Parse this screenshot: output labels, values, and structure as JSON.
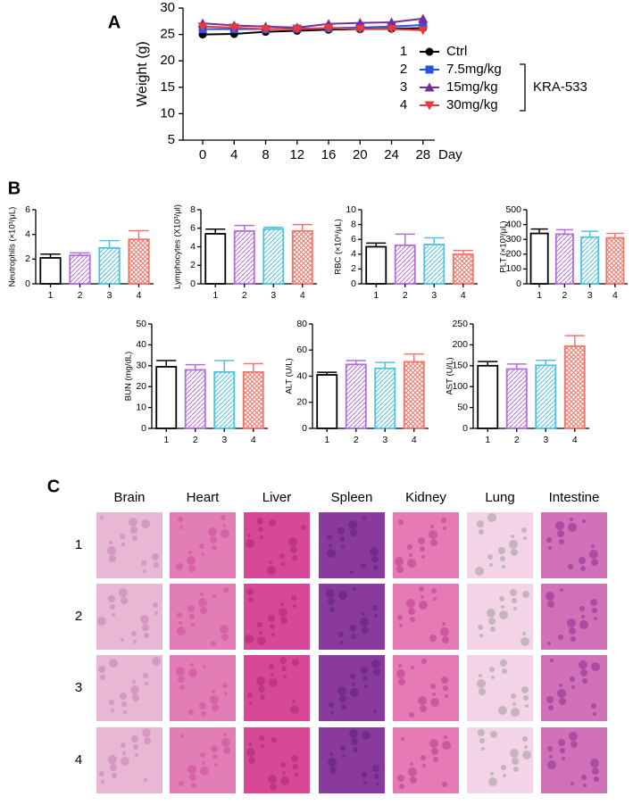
{
  "chart_data": [
    {
      "type": "line",
      "panel": "A",
      "xlabel": "Day",
      "ylabel": "Weight (g)",
      "x": [
        0,
        4,
        8,
        12,
        16,
        20,
        24,
        28
      ],
      "xlim": [
        -2.5,
        29.5
      ],
      "xticks": [
        0,
        4,
        8,
        12,
        16,
        20,
        24,
        28
      ],
      "ylim": [
        5,
        30
      ],
      "yticks": [
        5,
        10,
        15,
        20,
        25,
        30
      ],
      "legend_labels": [
        "1",
        "2",
        "3",
        "4"
      ],
      "group_label": "KRA-533",
      "series": [
        {
          "name": "Ctrl",
          "color": "#000000",
          "marker": "circle",
          "values": [
            25,
            25.1,
            25.5,
            25.7,
            25.9,
            26,
            26.1,
            26.2
          ]
        },
        {
          "name": "7.5mg/kg",
          "color": "#2453e8",
          "marker": "square",
          "values": [
            26,
            26,
            26,
            26.1,
            26.2,
            26.3,
            26.5,
            26.8
          ]
        },
        {
          "name": "15mg/kg",
          "color": "#7b2d9c",
          "marker": "triangle-up",
          "values": [
            27.1,
            26.7,
            26.5,
            26.3,
            27,
            27.2,
            27.3,
            28
          ]
        },
        {
          "name": "30mg/kg",
          "color": "#e83a3a",
          "marker": "triangle-down",
          "values": [
            26.5,
            26.3,
            26,
            26,
            26.2,
            26,
            26,
            25.8
          ]
        }
      ]
    },
    {
      "type": "bar",
      "panel": "B",
      "ylabel": "Neutrophils (×10³/μL)",
      "categories": [
        "1",
        "2",
        "3",
        "4"
      ],
      "values": [
        2.1,
        2.3,
        2.9,
        3.6
      ],
      "errors": [
        0.3,
        0.2,
        0.6,
        0.7
      ],
      "ylim": [
        0,
        6
      ],
      "yticks": [
        0,
        2,
        4,
        6
      ],
      "colors": [
        "#000000",
        "#b46be0",
        "#4dc3e0",
        "#f0776b"
      ],
      "hatch": [
        "none",
        "diagonal",
        "diagonal",
        "cross"
      ]
    },
    {
      "type": "bar",
      "ylabel": "Lymphocytes (X10³/μl)",
      "categories": [
        "1",
        "2",
        "3",
        "4"
      ],
      "values": [
        5.4,
        5.7,
        5.9,
        5.7
      ],
      "errors": [
        0.5,
        0.6,
        0.2,
        0.7
      ],
      "ylim": [
        0,
        8
      ],
      "yticks": [
        0,
        2,
        4,
        6,
        8
      ],
      "colors": [
        "#000000",
        "#b46be0",
        "#4dc3e0",
        "#f0776b"
      ],
      "hatch": [
        "none",
        "diagonal",
        "diagonal",
        "cross"
      ]
    },
    {
      "type": "bar",
      "ylabel": "RBC (×10⁶/μL)",
      "categories": [
        "1",
        "2",
        "3",
        "4"
      ],
      "values": [
        5.0,
        5.2,
        5.3,
        4.0
      ],
      "errors": [
        0.5,
        1.5,
        0.9,
        0.5
      ],
      "ylim": [
        0,
        10
      ],
      "yticks": [
        0,
        2,
        4,
        6,
        8,
        10
      ],
      "colors": [
        "#000000",
        "#b46be0",
        "#4dc3e0",
        "#f0776b"
      ],
      "hatch": [
        "none",
        "diagonal",
        "diagonal",
        "cross"
      ]
    },
    {
      "type": "bar",
      "ylabel": "PLT (×10³/μL)",
      "categories": [
        "1",
        "2",
        "3",
        "4"
      ],
      "values": [
        340,
        335,
        315,
        310
      ],
      "errors": [
        30,
        30,
        40,
        30
      ],
      "ylim": [
        0,
        500
      ],
      "yticks": [
        0,
        100,
        200,
        300,
        400,
        500
      ],
      "colors": [
        "#000000",
        "#b46be0",
        "#4dc3e0",
        "#f0776b"
      ],
      "hatch": [
        "none",
        "diagonal",
        "diagonal",
        "cross"
      ]
    },
    {
      "type": "bar",
      "ylabel": "BUN (mg/dL)",
      "categories": [
        "1",
        "2",
        "3",
        "4"
      ],
      "values": [
        29.5,
        28,
        27,
        27
      ],
      "errors": [
        3,
        2.5,
        5.5,
        4
      ],
      "ylim": [
        0,
        50
      ],
      "yticks": [
        0,
        10,
        20,
        30,
        40,
        50
      ],
      "colors": [
        "#000000",
        "#b46be0",
        "#4dc3e0",
        "#f0776b"
      ],
      "hatch": [
        "none",
        "diagonal",
        "diagonal",
        "cross"
      ]
    },
    {
      "type": "bar",
      "ylabel": "ALT (U/L)",
      "categories": [
        "1",
        "2",
        "3",
        "4"
      ],
      "values": [
        41,
        49,
        46,
        51
      ],
      "errors": [
        2,
        3,
        4.5,
        6
      ],
      "ylim": [
        0,
        80
      ],
      "yticks": [
        0,
        20,
        40,
        60,
        80
      ],
      "colors": [
        "#000000",
        "#b46be0",
        "#4dc3e0",
        "#f0776b"
      ],
      "hatch": [
        "none",
        "diagonal",
        "diagonal",
        "cross"
      ]
    },
    {
      "type": "bar",
      "ylabel": "AST (U/L)",
      "categories": [
        "1",
        "2",
        "3",
        "4"
      ],
      "values": [
        150,
        142,
        151,
        197
      ],
      "errors": [
        10,
        12,
        12,
        25
      ],
      "ylim": [
        0,
        250
      ],
      "yticks": [
        0,
        50,
        100,
        150,
        200,
        250
      ],
      "colors": [
        "#000000",
        "#b46be0",
        "#4dc3e0",
        "#f0776b"
      ],
      "hatch": [
        "none",
        "diagonal",
        "diagonal",
        "cross"
      ]
    }
  ],
  "histology": {
    "panel": "C",
    "columns": [
      "Brain",
      "Heart",
      "Liver",
      "Spleen",
      "Kidney",
      "Lung",
      "Intestine"
    ],
    "rows": [
      "1",
      "2",
      "3",
      "4"
    ]
  }
}
